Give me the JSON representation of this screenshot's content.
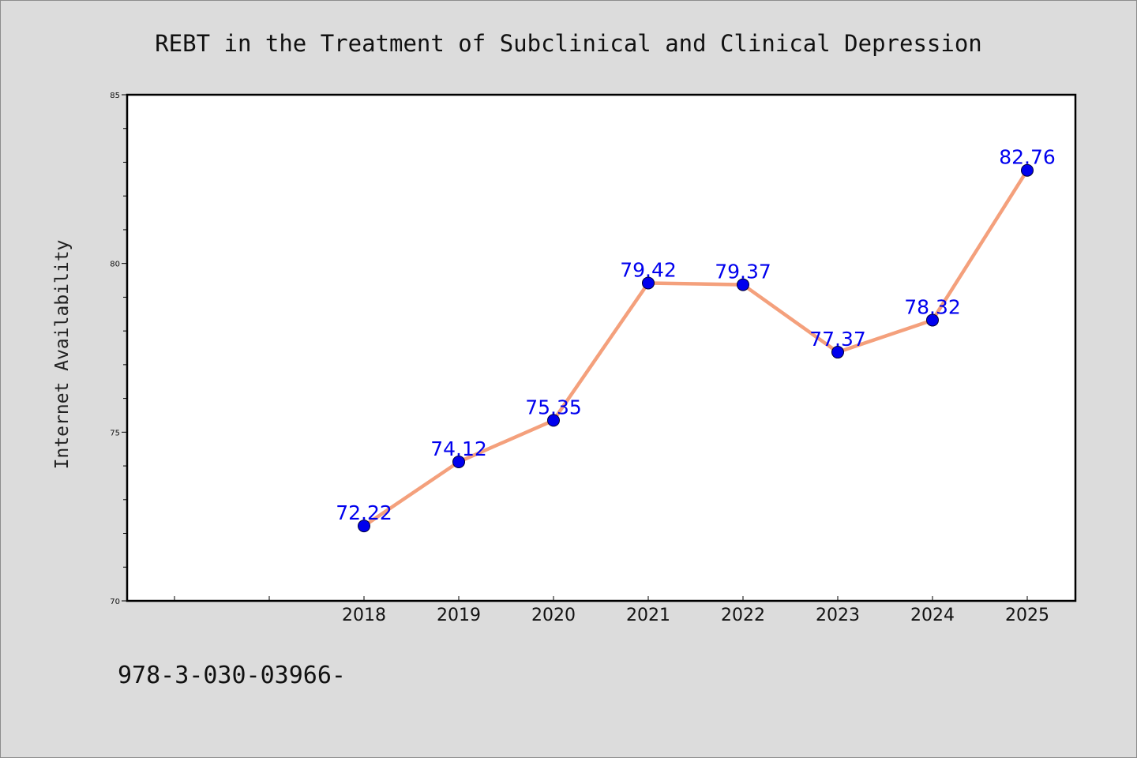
{
  "chart_data": {
    "type": "line",
    "title": "REBT in the Treatment of Subclinical and Clinical Depression",
    "xlabel": "",
    "ylabel": "Internet Availability",
    "categories": [
      "2018",
      "2019",
      "2020",
      "2021",
      "2022",
      "2023",
      "2024",
      "2025"
    ],
    "series": [
      {
        "values": [
          72.22,
          74.12,
          75.35,
          79.42,
          79.37,
          77.37,
          78.32,
          82.76
        ],
        "data_labels": [
          "72.22",
          "74.12",
          "75.35",
          "79.42",
          "79.37",
          "77.37",
          "78.32",
          "82.76"
        ]
      }
    ],
    "ylim": [
      70,
      85
    ],
    "yticks": [
      70,
      75,
      80,
      85
    ],
    "yticks_labels": [
      "70",
      "75",
      "80",
      "85"
    ],
    "grid": false,
    "legend": "none",
    "colors": {
      "line": "#f4a07c",
      "marker": "#0000ee",
      "label": "#0000ee",
      "plot_bg": "#ffffff",
      "page_bg": "#dcdcdc"
    }
  },
  "footer": {
    "text": "978-3-030-03966-"
  }
}
